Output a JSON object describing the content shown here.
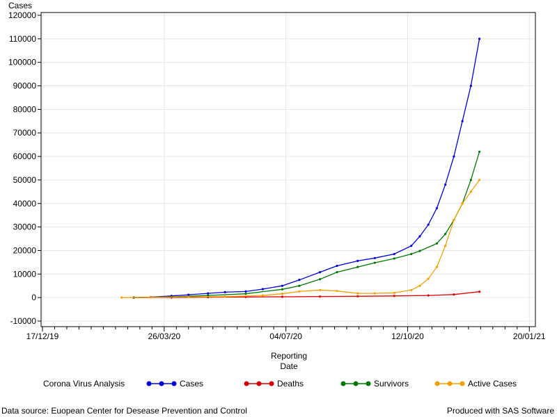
{
  "chart_data": {
    "type": "line",
    "title": "",
    "ylabel": "Cases",
    "xlabel_lines": [
      "Reporting",
      "Date"
    ],
    "x_axis": {
      "type": "date",
      "min": "2019-12-17",
      "max": "2021-01-25"
    },
    "ylim": [
      -10000,
      120000
    ],
    "y_ticks": [
      -10000,
      0,
      10000,
      20000,
      30000,
      40000,
      50000,
      60000,
      70000,
      80000,
      90000,
      100000,
      110000,
      120000
    ],
    "x_ticks": [
      {
        "date": "2019-12-17",
        "label": "17/12/19"
      },
      {
        "date": "2020-03-26",
        "label": "26/03/20"
      },
      {
        "date": "2020-07-04",
        "label": "04/07/20"
      },
      {
        "date": "2020-10-12",
        "label": "12/10/20"
      },
      {
        "date": "2021-01-20",
        "label": "20/01/21"
      }
    ],
    "grid": true,
    "legend_title": "Corona Virus Analysis",
    "legend_position": "bottom",
    "series": [
      {
        "name": "Cases",
        "color": "#0000dd",
        "points": [
          [
            "2020-03-01",
            0
          ],
          [
            "2020-03-15",
            200
          ],
          [
            "2020-04-01",
            700
          ],
          [
            "2020-04-15",
            1200
          ],
          [
            "2020-05-01",
            1800
          ],
          [
            "2020-05-15",
            2300
          ],
          [
            "2020-06-01",
            2600
          ],
          [
            "2020-06-15",
            3600
          ],
          [
            "2020-07-01",
            5000
          ],
          [
            "2020-07-15",
            7500
          ],
          [
            "2020-08-01",
            10800
          ],
          [
            "2020-08-15",
            13500
          ],
          [
            "2020-09-01",
            15600
          ],
          [
            "2020-09-15",
            16800
          ],
          [
            "2020-10-01",
            18500
          ],
          [
            "2020-10-15",
            22000
          ],
          [
            "2020-10-22",
            26000
          ],
          [
            "2020-10-29",
            31000
          ],
          [
            "2020-11-05",
            38000
          ],
          [
            "2020-11-12",
            48000
          ],
          [
            "2020-11-19",
            60000
          ],
          [
            "2020-11-26",
            75000
          ],
          [
            "2020-12-03",
            90000
          ],
          [
            "2020-12-10",
            110000
          ]
        ]
      },
      {
        "name": "Deaths",
        "color": "#dd0000",
        "points": [
          [
            "2020-03-01",
            0
          ],
          [
            "2020-04-01",
            50
          ],
          [
            "2020-05-01",
            150
          ],
          [
            "2020-06-01",
            250
          ],
          [
            "2020-07-01",
            350
          ],
          [
            "2020-08-01",
            450
          ],
          [
            "2020-09-01",
            550
          ],
          [
            "2020-10-01",
            700
          ],
          [
            "2020-10-29",
            900
          ],
          [
            "2020-11-19",
            1300
          ],
          [
            "2020-12-10",
            2500
          ]
        ]
      },
      {
        "name": "Survivors",
        "color": "#007700",
        "points": [
          [
            "2020-03-01",
            0
          ],
          [
            "2020-04-01",
            300
          ],
          [
            "2020-05-01",
            900
          ],
          [
            "2020-06-01",
            1600
          ],
          [
            "2020-07-01",
            3500
          ],
          [
            "2020-07-15",
            5000
          ],
          [
            "2020-08-01",
            7800
          ],
          [
            "2020-08-15",
            10800
          ],
          [
            "2020-09-01",
            13000
          ],
          [
            "2020-09-15",
            14800
          ],
          [
            "2020-10-01",
            16600
          ],
          [
            "2020-10-15",
            18500
          ],
          [
            "2020-10-22",
            19800
          ],
          [
            "2020-11-05",
            23000
          ],
          [
            "2020-11-12",
            27000
          ],
          [
            "2020-11-19",
            33000
          ],
          [
            "2020-11-26",
            40000
          ],
          [
            "2020-12-03",
            50000
          ],
          [
            "2020-12-10",
            62000
          ]
        ]
      },
      {
        "name": "Active Cases",
        "color": "#f5a000",
        "points": [
          [
            "2020-02-20",
            0
          ],
          [
            "2020-03-15",
            100
          ],
          [
            "2020-04-15",
            300
          ],
          [
            "2020-05-15",
            400
          ],
          [
            "2020-06-15",
            900
          ],
          [
            "2020-07-01",
            1600
          ],
          [
            "2020-07-15",
            2600
          ],
          [
            "2020-08-01",
            3200
          ],
          [
            "2020-08-15",
            2800
          ],
          [
            "2020-09-01",
            1800
          ],
          [
            "2020-09-15",
            1800
          ],
          [
            "2020-10-01",
            2000
          ],
          [
            "2020-10-15",
            3200
          ],
          [
            "2020-10-22",
            5000
          ],
          [
            "2020-10-29",
            8000
          ],
          [
            "2020-11-05",
            13000
          ],
          [
            "2020-11-12",
            22000
          ],
          [
            "2020-11-19",
            33000
          ],
          [
            "2020-11-26",
            40000
          ],
          [
            "2020-12-03",
            45000
          ],
          [
            "2020-12-10",
            50000
          ]
        ]
      }
    ]
  },
  "footer": {
    "source": "Data source: Euopean Center for Desease Prevention and Control",
    "produced": "Produced with SAS Software"
  }
}
